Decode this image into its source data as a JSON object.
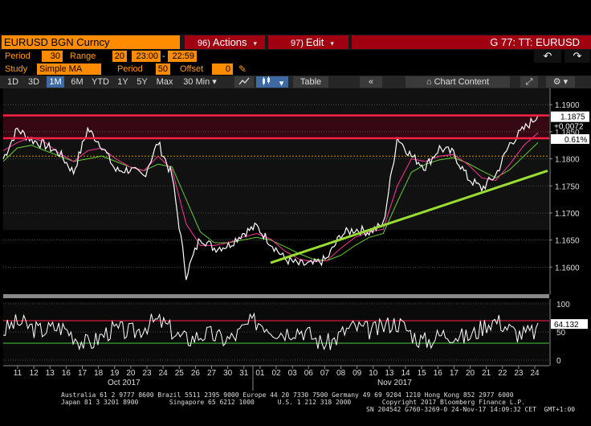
{
  "title_bar": {
    "ticker": "EURUSD BGN Curncy",
    "actions_num": "96)",
    "actions_label": "Actions",
    "edit_num": "97)",
    "edit_label": "Edit",
    "security_label": "G 77: TT: EURUSD"
  },
  "period_row": {
    "period_label": "Period",
    "period_value": "30",
    "range_label": "Range",
    "range_value": "20",
    "range_start": "23:00",
    "range_sep": "-",
    "range_end": "22:59"
  },
  "study_row": {
    "study_label": "Study",
    "study_value": "Simple MA",
    "period_label": "Period",
    "period_value": "50",
    "offset_label": "Offset",
    "offset_value": "0"
  },
  "toolbar": {
    "ranges": [
      "1D",
      "3D",
      "1M",
      "6M",
      "YTD",
      "1Y",
      "5Y",
      "Max"
    ],
    "active_range": "1M",
    "interval": "30 Min",
    "table_label": "Table",
    "chart_content_label": "Chart Content"
  },
  "colors": {
    "price": "#ffffff",
    "ma_fast": "#ff3399",
    "ma_slow": "#66cc33",
    "trendline": "#99dd33",
    "resistance": "#ff2244",
    "label_orange": "#ff8c00",
    "title_red": "#a00010"
  },
  "chart_data": {
    "type": "line",
    "y_axis": {
      "ylim": [
        1.155,
        1.193
      ],
      "ticks": [
        "1.1900",
        "1.1850",
        "1.1800",
        "1.1750",
        "1.1700",
        "1.1650",
        "1.1600"
      ],
      "tick_values": [
        1.19,
        1.185,
        1.18,
        1.175,
        1.17,
        1.165,
        1.16
      ]
    },
    "price_label": "1.1875",
    "change_label": "+0.0072",
    "change_pct_label": "0.61%",
    "x_ticks": [
      "11",
      "12",
      "13",
      "16",
      "17",
      "18",
      "19",
      "20",
      "23",
      "24",
      "25",
      "26",
      "27",
      "30",
      "31",
      "01",
      "02",
      "03",
      "06",
      "07",
      "08",
      "09",
      "10",
      "13",
      "14",
      "15",
      "16",
      "17",
      "20",
      "21",
      "22",
      "23",
      "24"
    ],
    "month_labels": [
      "Oct 2017",
      "Nov 2017"
    ],
    "price_series": [
      1.18,
      1.1855,
      1.1835,
      1.1825,
      1.181,
      1.1775,
      1.1855,
      1.1825,
      1.1778,
      1.178,
      1.1768,
      1.183,
      1.1768,
      1.1585,
      1.1655,
      1.1635,
      1.164,
      1.1662,
      1.1675,
      1.1645,
      1.1615,
      1.1605,
      1.1605,
      1.1615,
      1.166,
      1.167,
      1.1665,
      1.1678,
      1.184,
      1.1805,
      1.1785,
      1.182,
      1.181,
      1.1765,
      1.1745,
      1.177,
      1.1828,
      1.1855,
      1.188
    ],
    "ma_fast_series": [
      1.1815,
      1.183,
      1.184,
      1.183,
      1.181,
      1.1795,
      1.1815,
      1.182,
      1.18,
      1.1785,
      1.1778,
      1.1805,
      1.178,
      1.168,
      1.164,
      1.164,
      1.1645,
      1.1655,
      1.1662,
      1.1652,
      1.163,
      1.1615,
      1.161,
      1.1612,
      1.1635,
      1.1655,
      1.1665,
      1.167,
      1.175,
      1.18,
      1.1795,
      1.1805,
      1.1808,
      1.179,
      1.1765,
      1.176,
      1.179,
      1.1825,
      1.1848
    ],
    "ma_slow_series": [
      1.1795,
      1.182,
      1.1825,
      1.1815,
      1.1805,
      1.1795,
      1.18,
      1.1805,
      1.1795,
      1.1785,
      1.1778,
      1.179,
      1.1785,
      1.1725,
      1.1665,
      1.1645,
      1.1645,
      1.165,
      1.1655,
      1.165,
      1.1638,
      1.1625,
      1.1615,
      1.1612,
      1.1622,
      1.164,
      1.1655,
      1.1662,
      1.172,
      1.1775,
      1.179,
      1.1798,
      1.1802,
      1.1792,
      1.1778,
      1.1765,
      1.178,
      1.1805,
      1.183
    ],
    "resistance_levels": [
      1.188,
      1.1838
    ],
    "support_level": 1.1805,
    "trendline": {
      "start": [
        19,
        1.1608
      ],
      "end": [
        39,
        1.1778
      ]
    },
    "oscillator": {
      "ylim": [
        0,
        100
      ],
      "ticks": [
        "100",
        "50",
        "0"
      ],
      "tick_values": [
        100,
        50,
        0
      ],
      "value_label": "64.132",
      "upper_band": 70,
      "lower_band": 30
    }
  },
  "footer": {
    "line1": "Australia 61 2 9777 8600 Brazil 5511 2395 9000 Europe 44 20 7330 7500 Germany 49 69 9204 1210 Hong Kong 852 2977 6000",
    "line2": "Japan 81 3 3201 8900        Singapore 65 6212 1000      U.S. 1 212 318 2000        Copyright 2017 Bloomberg Finance L.P.",
    "line3": "SN 204542 G760-3269-0 24-Nov-17 14:09:32 CET  GMT+1:00"
  }
}
